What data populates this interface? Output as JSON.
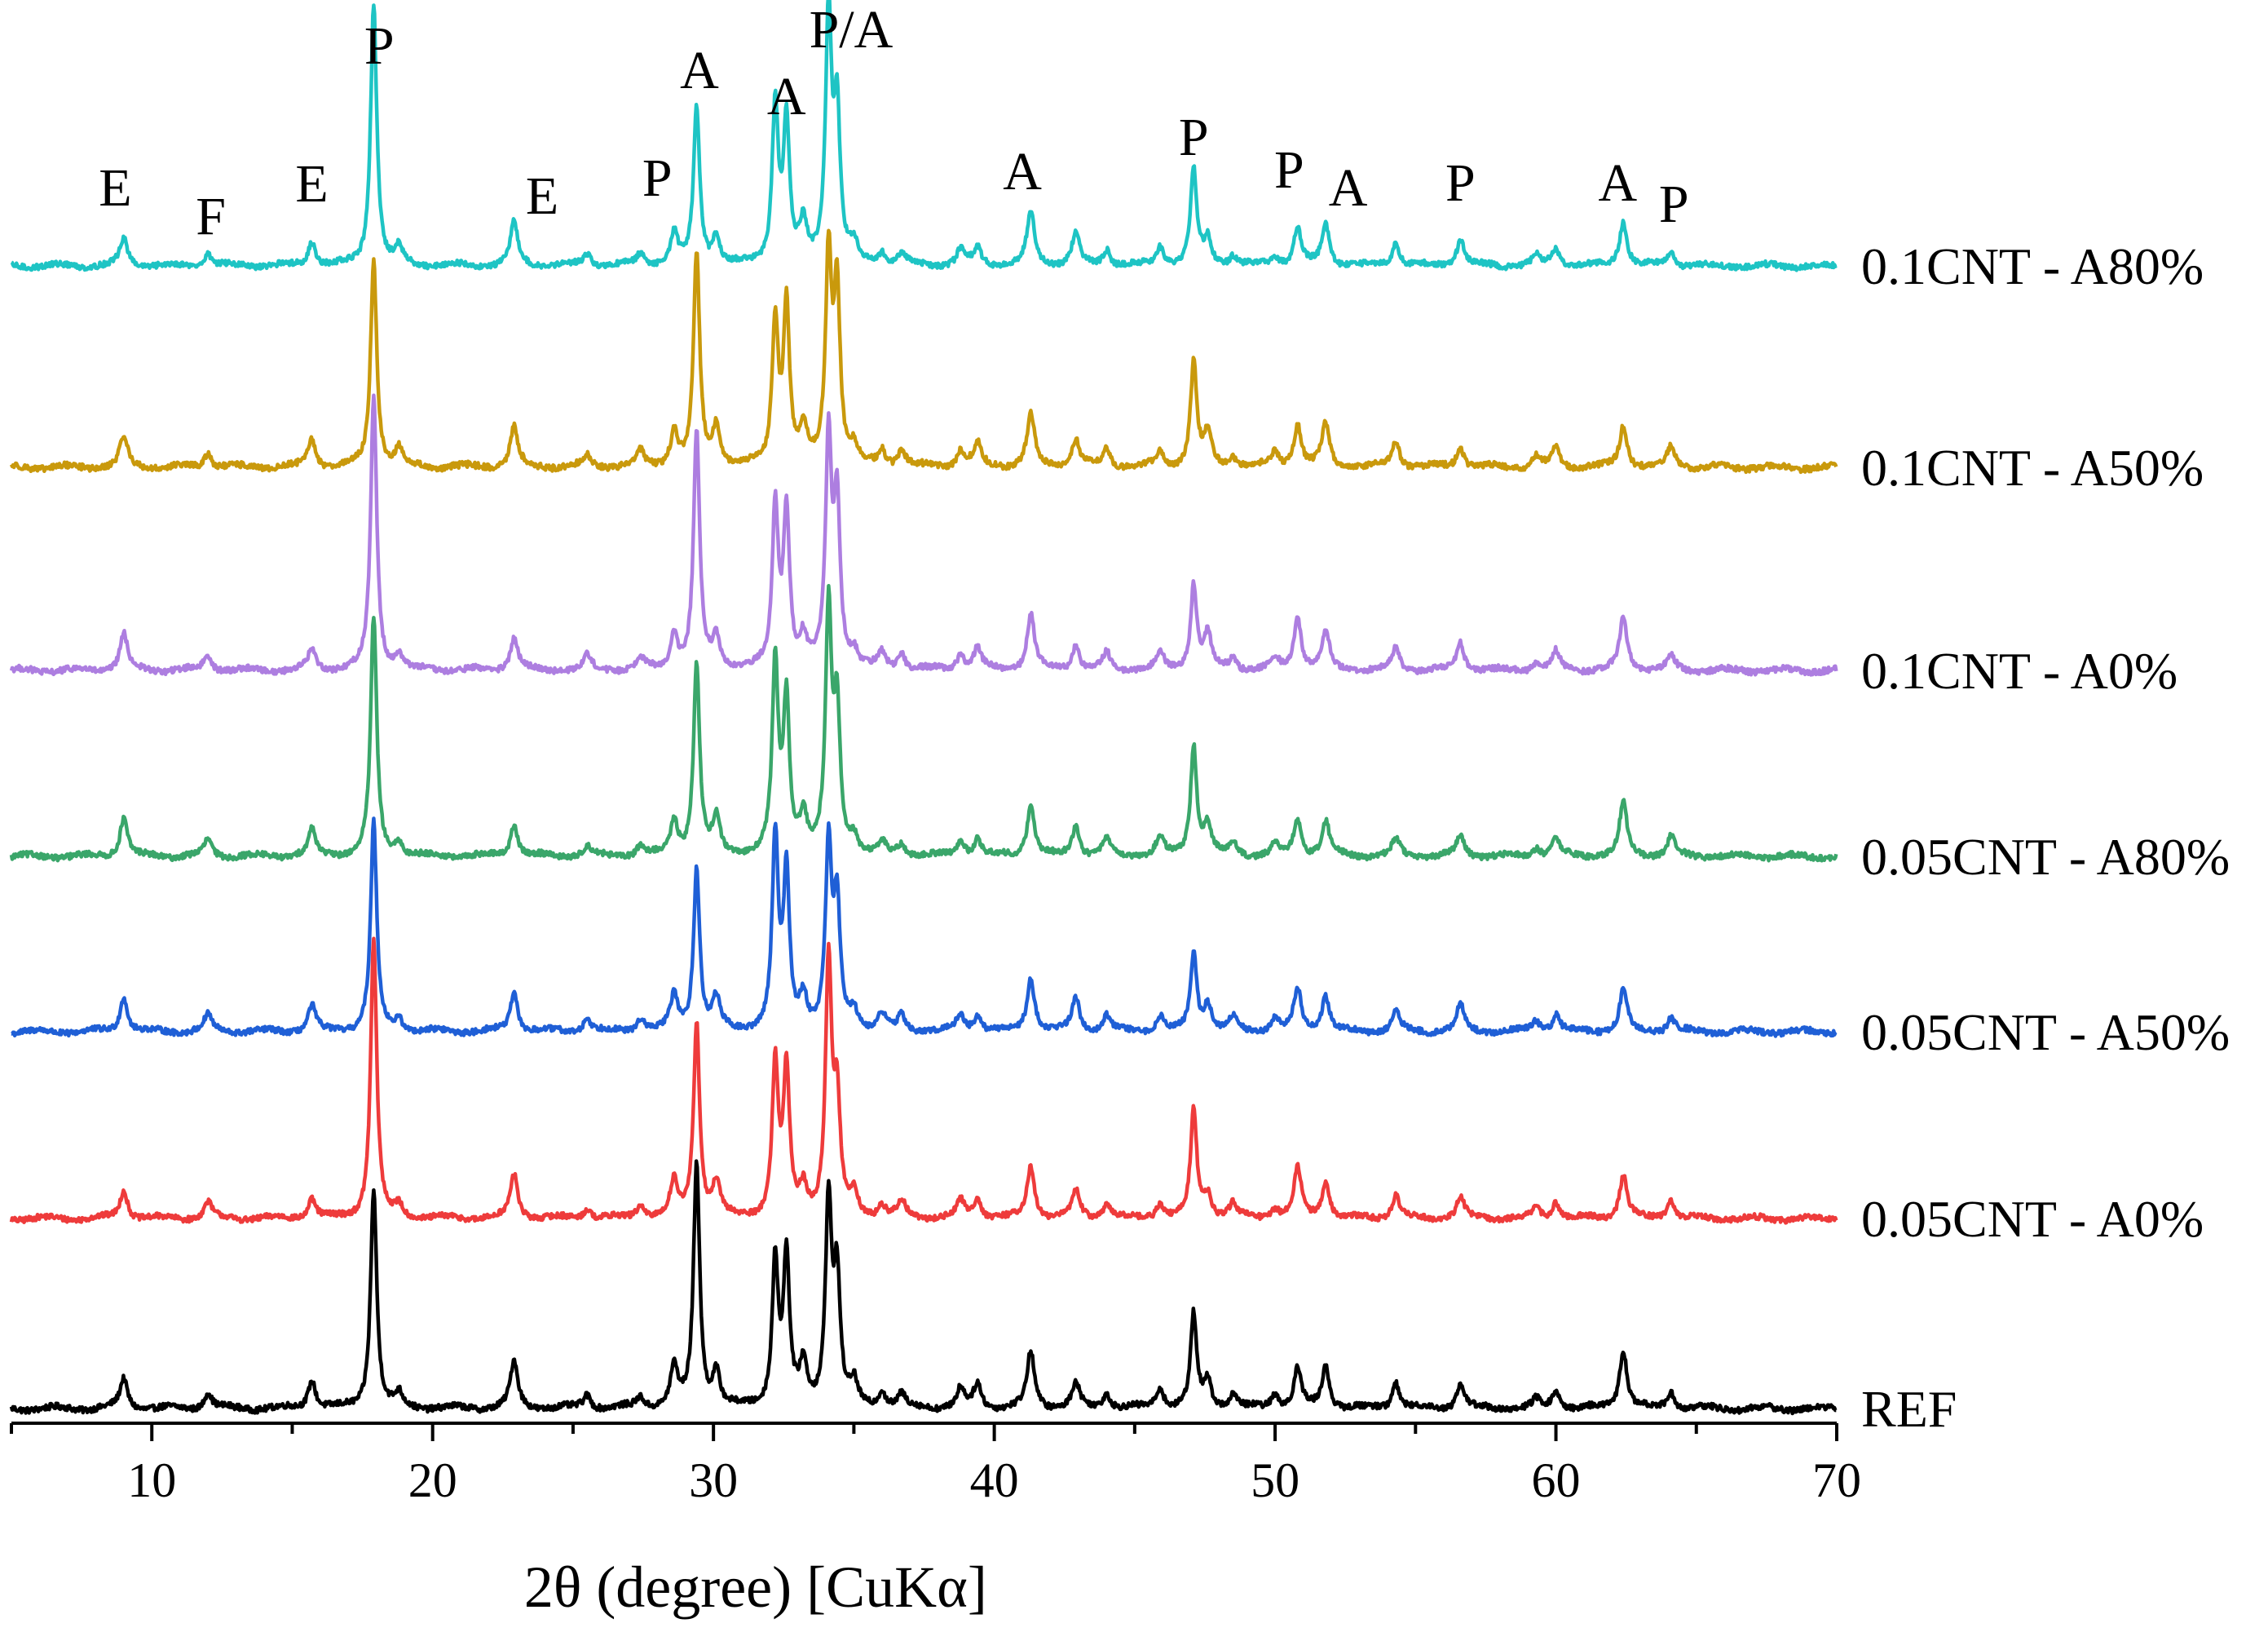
{
  "chart_data": {
    "type": "line",
    "title": "",
    "xlabel": "2θ (degree) [CuKα]",
    "ylabel": "",
    "xlim": [
      5,
      70
    ],
    "xticks": [
      10,
      20,
      30,
      40,
      50,
      60,
      70
    ],
    "x_tick_labels": [
      "10",
      "20",
      "30",
      "40",
      "50",
      "60",
      "70"
    ],
    "y_axis_visible": false,
    "series_stacking": "vertical offset, REF at bottom",
    "series": [
      {
        "name": "REF",
        "label": "REF",
        "color": "#000000"
      },
      {
        "name": "0.05CNT - A0%",
        "label": "0.05CNT - A0%",
        "color": "#ee3b3b"
      },
      {
        "name": "0.05CNT - A50%",
        "label": "0.05CNT - A50%",
        "color": "#1f5fd6"
      },
      {
        "name": "0.05CNT - A80%",
        "label": "0.05CNT - A80%",
        "color": "#3aa66a"
      },
      {
        "name": "0.1CNT - A0%",
        "label": "0.1CNT - A0%",
        "color": "#ad7ee0"
      },
      {
        "name": "0.1CNT - A50%",
        "label": "0.1CNT - A50%",
        "color": "#c9990c"
      },
      {
        "name": "0.1CNT - A80%",
        "label": "0.1CNT - A80%",
        "color": "#1ec4c4"
      }
    ],
    "peaks": [
      {
        "x": 9.0,
        "h": 0.14
      },
      {
        "x": 12.0,
        "h": 0.06
      },
      {
        "x": 15.7,
        "h": 0.1
      },
      {
        "x": 17.9,
        "h": 1.0
      },
      {
        "x": 18.8,
        "h": 0.06
      },
      {
        "x": 22.9,
        "h": 0.16
      },
      {
        "x": 25.5,
        "h": 0.05
      },
      {
        "x": 27.4,
        "h": 0.05
      },
      {
        "x": 28.6,
        "h": 0.16
      },
      {
        "x": 29.4,
        "h": 0.82
      },
      {
        "x": 30.1,
        "h": 0.14
      },
      {
        "x": 32.2,
        "h": 0.7
      },
      {
        "x": 32.6,
        "h": 0.55
      },
      {
        "x": 33.2,
        "h": 0.14
      },
      {
        "x": 34.1,
        "h": 0.92
      },
      {
        "x": 34.4,
        "h": 0.58
      },
      {
        "x": 35.0,
        "h": 0.08
      },
      {
        "x": 36.0,
        "h": 0.06
      },
      {
        "x": 36.7,
        "h": 0.06
      },
      {
        "x": 38.8,
        "h": 0.08
      },
      {
        "x": 39.4,
        "h": 0.08
      },
      {
        "x": 41.3,
        "h": 0.22
      },
      {
        "x": 42.9,
        "h": 0.12
      },
      {
        "x": 44.0,
        "h": 0.06
      },
      {
        "x": 45.9,
        "h": 0.07
      },
      {
        "x": 47.1,
        "h": 0.4
      },
      {
        "x": 47.6,
        "h": 0.12
      },
      {
        "x": 48.5,
        "h": 0.05
      },
      {
        "x": 50.0,
        "h": 0.05
      },
      {
        "x": 50.8,
        "h": 0.18
      },
      {
        "x": 51.8,
        "h": 0.18
      },
      {
        "x": 54.3,
        "h": 0.09
      },
      {
        "x": 56.6,
        "h": 0.1
      },
      {
        "x": 59.3,
        "h": 0.04
      },
      {
        "x": 60.0,
        "h": 0.07
      },
      {
        "x": 62.4,
        "h": 0.2
      },
      {
        "x": 64.1,
        "h": 0.07
      }
    ],
    "peak_annotations": [
      {
        "text": "E",
        "x": 8.7
      },
      {
        "text": "F",
        "x": 12.1
      },
      {
        "text": "E",
        "x": 15.7
      },
      {
        "text": "P",
        "x": 18.1
      },
      {
        "text": "E",
        "x": 23.9
      },
      {
        "text": "P",
        "x": 28.0
      },
      {
        "text": "A",
        "x": 29.5
      },
      {
        "text": "A",
        "x": 32.6
      },
      {
        "text": "P/A",
        "x": 34.9
      },
      {
        "text": "A",
        "x": 41.0
      },
      {
        "text": "P",
        "x": 47.1
      },
      {
        "text": "P",
        "x": 50.5
      },
      {
        "text": "A",
        "x": 52.6
      },
      {
        "text": "P",
        "x": 56.6
      },
      {
        "text": "A",
        "x": 62.2
      },
      {
        "text": "P",
        "x": 64.2
      }
    ]
  }
}
